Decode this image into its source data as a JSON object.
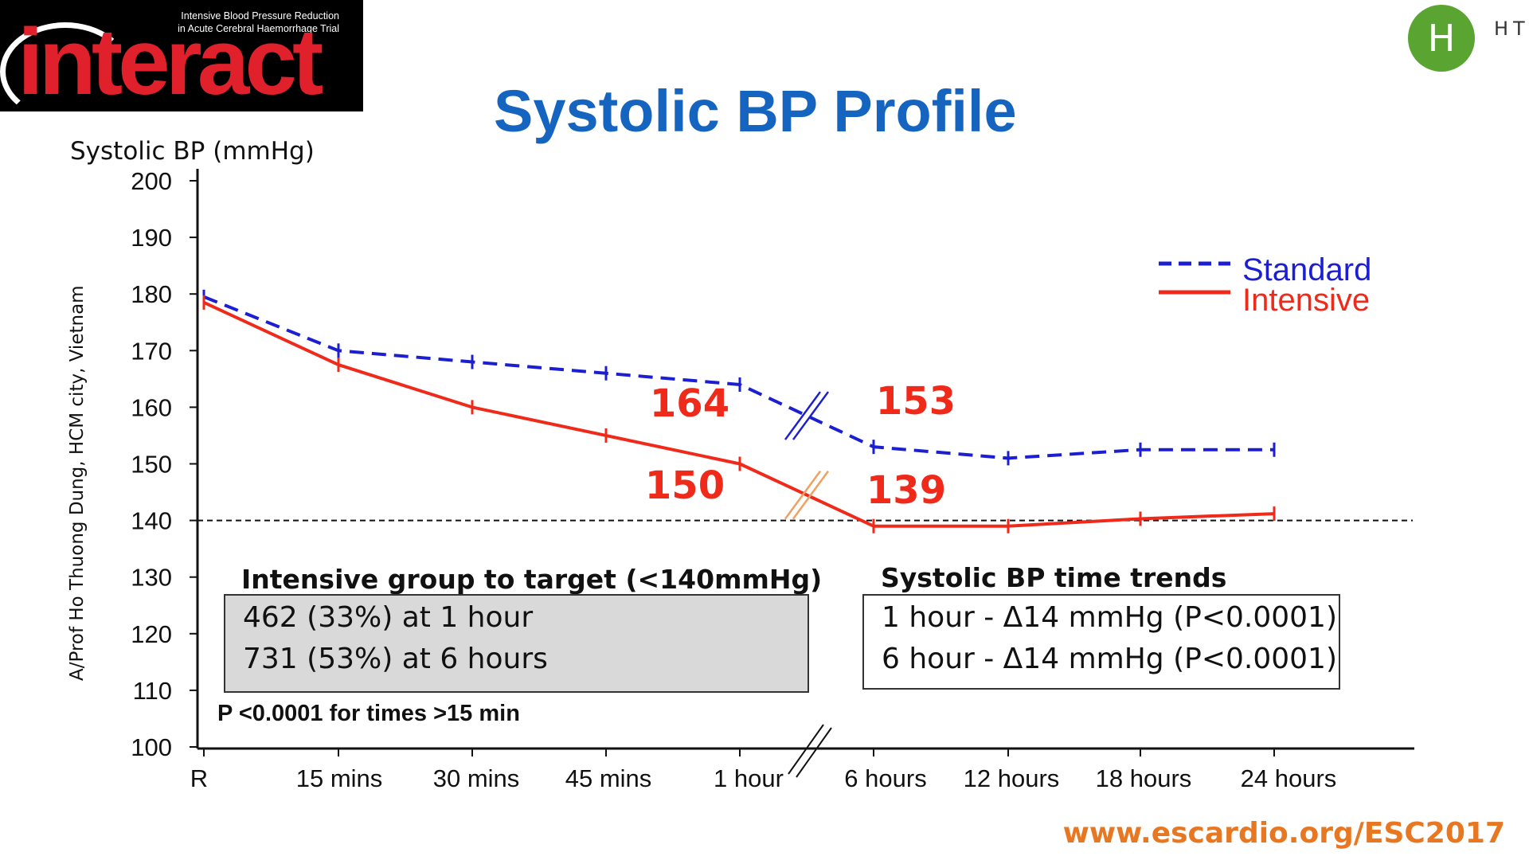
{
  "logo": {
    "tagline_1": "Intensive Blood Pressure Reduction",
    "tagline_2": "in Acute Cerebral Haemorrhage Trial",
    "wordmark": "interact"
  },
  "badge": {
    "letter": "H",
    "text": "HT"
  },
  "credit": "A/Prof Ho Thuong Dung, HCM city, Vietnam",
  "footer_url": "www.escardio.org/ESC2017",
  "colors": {
    "standard": "#1c1fd0",
    "intensive": "#f02a1a",
    "title": "#1565c0",
    "url": "#e87722"
  },
  "chart_data": {
    "type": "line",
    "title": "Systolic BP Profile",
    "ylabel": "Systolic BP (mmHg)",
    "xlabel": "",
    "ylim": [
      100,
      200
    ],
    "yticks": [
      200,
      190,
      180,
      170,
      160,
      150,
      140,
      130,
      120,
      110,
      100
    ],
    "categories": [
      "R",
      "15 mins",
      "30 mins",
      "45 mins",
      "1 hour",
      "6 hours",
      "12 hours",
      "18 hours",
      "24 hours"
    ],
    "axis_break_after": "1 hour",
    "reference_line": 140,
    "series": [
      {
        "name": "Standard",
        "style": "dashed",
        "values": [
          179.5,
          170,
          168,
          166,
          164,
          153,
          151,
          152.5,
          152.5
        ]
      },
      {
        "name": "Intensive",
        "style": "solid",
        "values": [
          178.5,
          167.5,
          160,
          155,
          150,
          139,
          139,
          140.3,
          141.2
        ]
      }
    ],
    "value_labels": [
      {
        "text": "164",
        "series": "Standard"
      },
      {
        "text": "153",
        "series": "Standard"
      },
      {
        "text": "150",
        "series": "Intensive"
      },
      {
        "text": "139",
        "series": "Intensive"
      }
    ],
    "legend": [
      "Standard",
      "Intensive"
    ]
  },
  "target_box": {
    "title": "Intensive group to target (<140mmHg)",
    "lines": [
      "462 (33%) at 1 hour",
      "731 (53%) at 6 hours"
    ]
  },
  "trends_box": {
    "title": "Systolic BP time trends",
    "lines": [
      "1 hour - Δ14 mmHg (P<0.0001)",
      "6 hour - Δ14 mmHg (P<0.0001)"
    ]
  },
  "p_value_note": "P <0.0001 for times >15 min"
}
